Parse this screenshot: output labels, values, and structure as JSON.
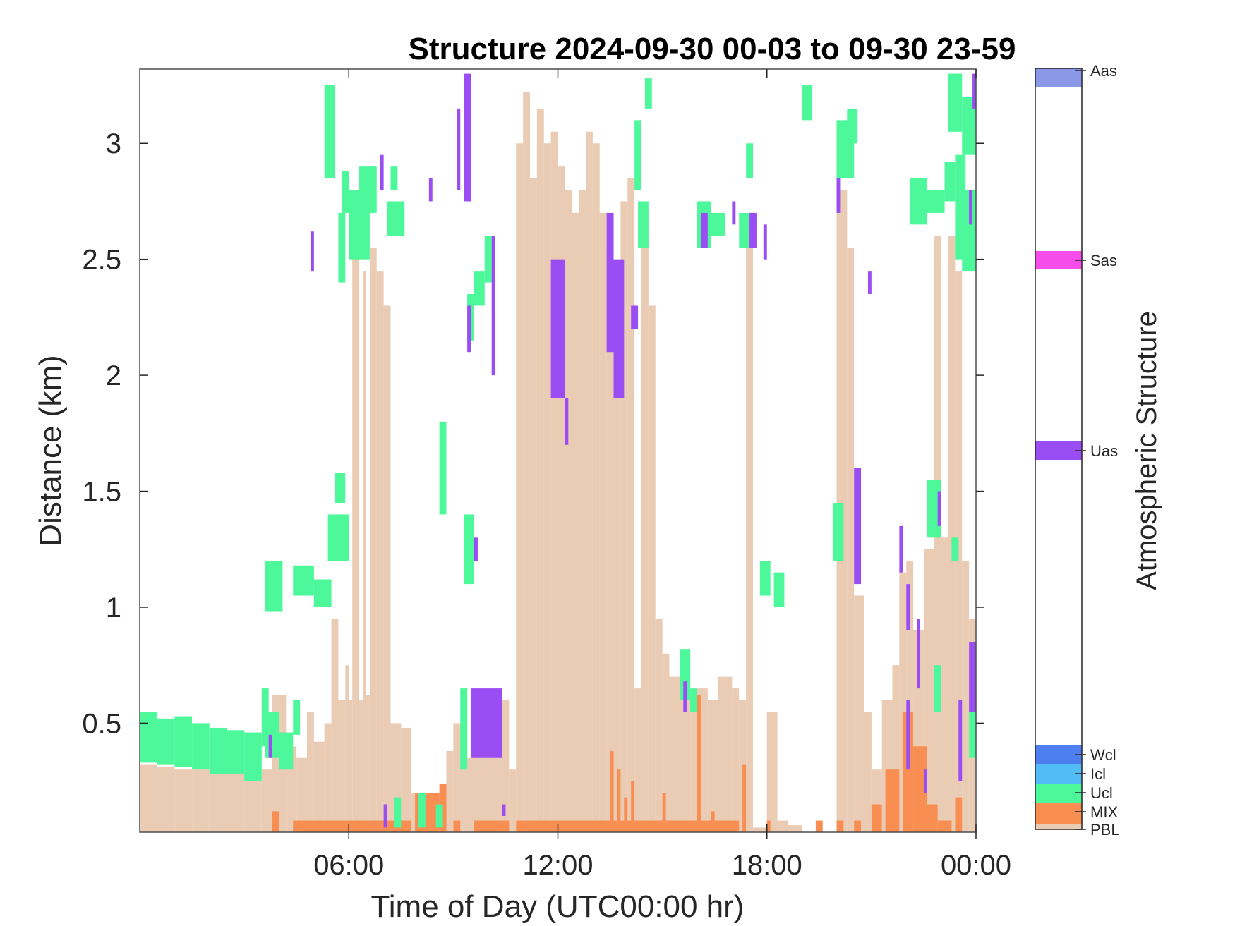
{
  "chart_data": {
    "type": "heatmap",
    "title": "Structure 2024-09-30 00-03 to 09-30 23-59",
    "xlabel": "Time of Day (UTC00:00 hr)",
    "ylabel": "Distance (km)",
    "x_range_hr": [
      0,
      24
    ],
    "y_range_km": [
      0.03,
      3.32
    ],
    "x_ticks": [
      {
        "value": 6,
        "label": "06:00"
      },
      {
        "value": 12,
        "label": "12:00"
      },
      {
        "value": 18,
        "label": "18:00"
      },
      {
        "value": 24,
        "label": "00:00"
      }
    ],
    "y_ticks": [
      {
        "value": 0.5,
        "label": "0.5"
      },
      {
        "value": 1,
        "label": "1"
      },
      {
        "value": 1.5,
        "label": "1.5"
      },
      {
        "value": 2,
        "label": "2"
      },
      {
        "value": 2.5,
        "label": "2.5"
      },
      {
        "value": 3,
        "label": "3"
      }
    ],
    "colorbar": {
      "label": "Atmospheric Structure",
      "classes": [
        {
          "label": "PBL",
          "color": "#EACBB4"
        },
        {
          "label": "MIX",
          "color": "#F98E52"
        },
        {
          "label": "Ucl",
          "color": "#4DF89B"
        },
        {
          "label": "Icl",
          "color": "#52BCF7"
        },
        {
          "label": "Wcl",
          "color": "#4D7FF0"
        },
        {
          "label": "Uas",
          "color": "#9B4DF4"
        },
        {
          "label": "Sas",
          "color": "#F64DEA"
        },
        {
          "label": "Aas",
          "color": "#8B98E7"
        }
      ]
    },
    "pbl_top_km": [
      [
        0.0,
        0.32
      ],
      [
        0.5,
        0.31
      ],
      [
        1.0,
        0.3
      ],
      [
        1.5,
        0.3
      ],
      [
        2.0,
        0.29
      ],
      [
        2.5,
        0.28
      ],
      [
        3.0,
        0.28
      ],
      [
        3.5,
        0.3
      ],
      [
        3.8,
        0.62
      ],
      [
        4.2,
        0.4
      ],
      [
        4.5,
        0.35
      ],
      [
        4.8,
        0.55
      ],
      [
        5.0,
        0.42
      ],
      [
        5.3,
        0.5
      ],
      [
        5.5,
        0.95
      ],
      [
        5.7,
        0.6
      ],
      [
        5.9,
        0.75
      ],
      [
        6.0,
        0.6
      ],
      [
        6.1,
        2.55
      ],
      [
        6.3,
        0.6
      ],
      [
        6.4,
        2.45
      ],
      [
        6.5,
        0.62
      ],
      [
        6.6,
        2.55
      ],
      [
        6.8,
        2.45
      ],
      [
        7.0,
        2.3
      ],
      [
        7.2,
        0.5
      ],
      [
        7.5,
        0.48
      ],
      [
        7.8,
        0.2
      ],
      [
        8.2,
        0.05
      ],
      [
        8.5,
        0.18
      ],
      [
        8.8,
        0.38
      ],
      [
        9.0,
        0.5
      ],
      [
        9.3,
        0.35
      ],
      [
        9.6,
        0.45
      ],
      [
        10.0,
        0.4
      ],
      [
        10.3,
        0.6
      ],
      [
        10.6,
        0.3
      ],
      [
        10.8,
        3.0
      ],
      [
        11.0,
        3.22
      ],
      [
        11.2,
        2.85
      ],
      [
        11.4,
        3.15
      ],
      [
        11.6,
        3.0
      ],
      [
        11.8,
        3.05
      ],
      [
        12.0,
        2.9
      ],
      [
        12.2,
        2.8
      ],
      [
        12.4,
        2.7
      ],
      [
        12.6,
        2.8
      ],
      [
        12.8,
        3.05
      ],
      [
        13.0,
        3.0
      ],
      [
        13.2,
        2.7
      ],
      [
        13.4,
        2.55
      ],
      [
        13.6,
        2.35
      ],
      [
        13.8,
        2.75
      ],
      [
        14.0,
        2.85
      ],
      [
        14.2,
        0.65
      ],
      [
        14.4,
        2.6
      ],
      [
        14.6,
        2.3
      ],
      [
        14.8,
        0.95
      ],
      [
        15.0,
        0.8
      ],
      [
        15.2,
        0.7
      ],
      [
        15.5,
        0.65
      ],
      [
        15.8,
        0.62
      ],
      [
        16.0,
        0.65
      ],
      [
        16.3,
        0.6
      ],
      [
        16.6,
        0.7
      ],
      [
        17.0,
        0.65
      ],
      [
        17.2,
        0.6
      ],
      [
        17.4,
        2.6
      ],
      [
        17.6,
        0.05
      ],
      [
        18.0,
        0.55
      ],
      [
        18.3,
        0.08
      ],
      [
        18.6,
        0.06
      ],
      [
        19.0,
        0.03
      ],
      [
        19.3,
        0.03
      ],
      [
        19.6,
        0.03
      ],
      [
        20.0,
        2.8
      ],
      [
        20.3,
        2.55
      ],
      [
        20.5,
        1.05
      ],
      [
        20.8,
        0.55
      ],
      [
        21.0,
        0.3
      ],
      [
        21.3,
        0.6
      ],
      [
        21.6,
        0.75
      ],
      [
        21.8,
        1.15
      ],
      [
        22.0,
        1.2
      ],
      [
        22.2,
        0.9
      ],
      [
        22.5,
        1.25
      ],
      [
        22.8,
        2.6
      ],
      [
        23.0,
        1.3
      ],
      [
        23.2,
        2.6
      ],
      [
        23.4,
        2.45
      ],
      [
        23.6,
        1.2
      ],
      [
        23.8,
        0.95
      ],
      [
        24.0,
        0.1
      ]
    ],
    "mix_segments": [
      [
        3.8,
        4.0,
        0.12
      ],
      [
        4.4,
        7.8,
        0.08
      ],
      [
        7.9,
        8.6,
        0.2
      ],
      [
        8.6,
        8.8,
        0.24
      ],
      [
        9.0,
        9.2,
        0.08
      ],
      [
        9.6,
        10.6,
        0.08
      ],
      [
        10.8,
        17.2,
        0.08
      ],
      [
        13.5,
        13.6,
        0.38
      ],
      [
        13.7,
        13.8,
        0.3
      ],
      [
        13.9,
        14.0,
        0.18
      ],
      [
        14.1,
        14.2,
        0.25
      ],
      [
        15.0,
        15.1,
        0.2
      ],
      [
        16.0,
        16.1,
        0.62
      ],
      [
        16.4,
        16.5,
        0.12
      ],
      [
        17.3,
        17.4,
        0.32
      ],
      [
        18.0,
        18.1,
        0.08
      ],
      [
        19.4,
        19.6,
        0.08
      ],
      [
        20.0,
        20.2,
        0.08
      ],
      [
        20.5,
        20.7,
        0.08
      ],
      [
        21.0,
        21.3,
        0.15
      ],
      [
        21.4,
        21.8,
        0.3
      ],
      [
        21.9,
        22.2,
        0.55
      ],
      [
        22.2,
        22.6,
        0.4
      ],
      [
        22.6,
        22.9,
        0.15
      ],
      [
        22.9,
        23.3,
        0.08
      ],
      [
        23.4,
        23.6,
        0.18
      ]
    ],
    "ucl_segments": [
      [
        0.0,
        0.5,
        0.33,
        0.55
      ],
      [
        0.5,
        1.0,
        0.32,
        0.52
      ],
      [
        1.0,
        1.5,
        0.31,
        0.53
      ],
      [
        1.5,
        2.0,
        0.3,
        0.5
      ],
      [
        2.0,
        2.5,
        0.28,
        0.48
      ],
      [
        2.5,
        3.0,
        0.28,
        0.47
      ],
      [
        3.0,
        3.5,
        0.25,
        0.46
      ],
      [
        3.5,
        3.7,
        0.4,
        0.65
      ],
      [
        3.6,
        4.0,
        0.35,
        0.55
      ],
      [
        4.0,
        4.4,
        0.3,
        0.46
      ],
      [
        4.4,
        4.6,
        0.45,
        0.6
      ],
      [
        3.6,
        4.1,
        0.98,
        1.2
      ],
      [
        4.4,
        5.0,
        1.05,
        1.18
      ],
      [
        5.0,
        5.5,
        1.0,
        1.12
      ],
      [
        5.4,
        6.0,
        1.2,
        1.4
      ],
      [
        5.6,
        5.9,
        1.45,
        1.58
      ],
      [
        5.7,
        5.9,
        2.4,
        2.7
      ],
      [
        5.8,
        6.0,
        2.7,
        2.88
      ],
      [
        5.3,
        5.6,
        2.85,
        3.25
      ],
      [
        6.0,
        6.6,
        2.5,
        2.8
      ],
      [
        6.3,
        6.8,
        2.7,
        2.9
      ],
      [
        7.1,
        7.6,
        2.6,
        2.75
      ],
      [
        7.2,
        7.4,
        2.8,
        2.9
      ],
      [
        7.3,
        7.5,
        0.05,
        0.18
      ],
      [
        8.0,
        8.2,
        0.05,
        0.2
      ],
      [
        8.5,
        8.7,
        0.05,
        0.15
      ],
      [
        8.6,
        8.8,
        1.4,
        1.8
      ],
      [
        9.2,
        9.4,
        0.3,
        0.65
      ],
      [
        9.3,
        9.6,
        1.1,
        1.4
      ],
      [
        9.4,
        9.6,
        2.15,
        2.35
      ],
      [
        9.6,
        9.9,
        2.3,
        2.45
      ],
      [
        9.9,
        10.1,
        2.4,
        2.6
      ],
      [
        14.2,
        14.4,
        2.8,
        3.1
      ],
      [
        14.3,
        14.6,
        2.55,
        2.75
      ],
      [
        14.5,
        14.7,
        3.15,
        3.28
      ],
      [
        15.5,
        15.8,
        0.6,
        0.82
      ],
      [
        15.8,
        16.0,
        0.55,
        0.65
      ],
      [
        16.0,
        16.4,
        2.55,
        2.75
      ],
      [
        16.4,
        16.8,
        2.6,
        2.7
      ],
      [
        17.2,
        17.5,
        2.55,
        2.7
      ],
      [
        17.8,
        18.1,
        1.05,
        1.2
      ],
      [
        18.2,
        18.5,
        1.0,
        1.15
      ],
      [
        17.4,
        17.6,
        2.85,
        3.0
      ],
      [
        19.0,
        19.3,
        3.1,
        3.25
      ],
      [
        19.9,
        20.2,
        1.2,
        1.45
      ],
      [
        20.0,
        20.5,
        2.85,
        3.1
      ],
      [
        20.3,
        20.6,
        3.0,
        3.15
      ],
      [
        22.1,
        22.6,
        2.65,
        2.85
      ],
      [
        22.6,
        23.1,
        2.7,
        2.8
      ],
      [
        23.1,
        23.4,
        2.75,
        2.92
      ],
      [
        23.4,
        23.7,
        2.5,
        2.95
      ],
      [
        23.2,
        23.6,
        3.05,
        3.3
      ],
      [
        23.6,
        24.0,
        2.45,
        2.8
      ],
      [
        23.6,
        24.0,
        2.95,
        3.2
      ],
      [
        22.6,
        23.0,
        1.3,
        1.55
      ],
      [
        22.8,
        23.0,
        0.55,
        0.75
      ],
      [
        23.3,
        23.5,
        1.2,
        1.3
      ],
      [
        23.8,
        24.0,
        0.35,
        0.55
      ]
    ],
    "uas_segments": [
      [
        3.7,
        3.8,
        0.35,
        0.45
      ],
      [
        4.9,
        5.0,
        2.45,
        2.62
      ],
      [
        6.9,
        7.0,
        2.8,
        2.95
      ],
      [
        7.0,
        7.1,
        0.05,
        0.15
      ],
      [
        8.3,
        8.4,
        2.75,
        2.85
      ],
      [
        9.1,
        9.2,
        2.8,
        3.15
      ],
      [
        9.3,
        9.5,
        2.75,
        3.3
      ],
      [
        9.4,
        9.5,
        2.1,
        2.3
      ],
      [
        9.6,
        9.7,
        1.2,
        1.3
      ],
      [
        9.5,
        10.4,
        0.35,
        0.65
      ],
      [
        10.1,
        10.2,
        2.0,
        2.6
      ],
      [
        10.3,
        10.4,
        0.5,
        0.6
      ],
      [
        10.4,
        10.5,
        0.1,
        0.15
      ],
      [
        11.8,
        12.2,
        1.9,
        2.5
      ],
      [
        12.2,
        12.3,
        1.7,
        1.9
      ],
      [
        13.4,
        13.6,
        2.1,
        2.7
      ],
      [
        13.6,
        13.9,
        1.9,
        2.5
      ],
      [
        14.1,
        14.3,
        2.2,
        2.3
      ],
      [
        15.6,
        15.7,
        0.55,
        0.68
      ],
      [
        16.1,
        16.3,
        2.55,
        2.7
      ],
      [
        17.0,
        17.1,
        2.65,
        2.75
      ],
      [
        17.5,
        17.7,
        2.55,
        2.7
      ],
      [
        17.9,
        18.0,
        2.5,
        2.65
      ],
      [
        20.0,
        20.1,
        2.7,
        2.85
      ],
      [
        20.5,
        20.7,
        1.1,
        1.6
      ],
      [
        20.9,
        21.0,
        2.35,
        2.45
      ],
      [
        21.8,
        21.9,
        1.15,
        1.35
      ],
      [
        22.0,
        22.1,
        0.3,
        0.6
      ],
      [
        22.0,
        22.1,
        0.9,
        1.1
      ],
      [
        22.3,
        22.4,
        0.65,
        0.95
      ],
      [
        22.5,
        22.6,
        0.2,
        0.3
      ],
      [
        22.9,
        23.0,
        1.35,
        1.5
      ],
      [
        23.5,
        23.6,
        0.25,
        0.6
      ],
      [
        23.8,
        23.9,
        2.65,
        2.8
      ],
      [
        23.8,
        24.0,
        0.55,
        0.85
      ],
      [
        23.9,
        24.0,
        3.15,
        3.3
      ]
    ]
  }
}
